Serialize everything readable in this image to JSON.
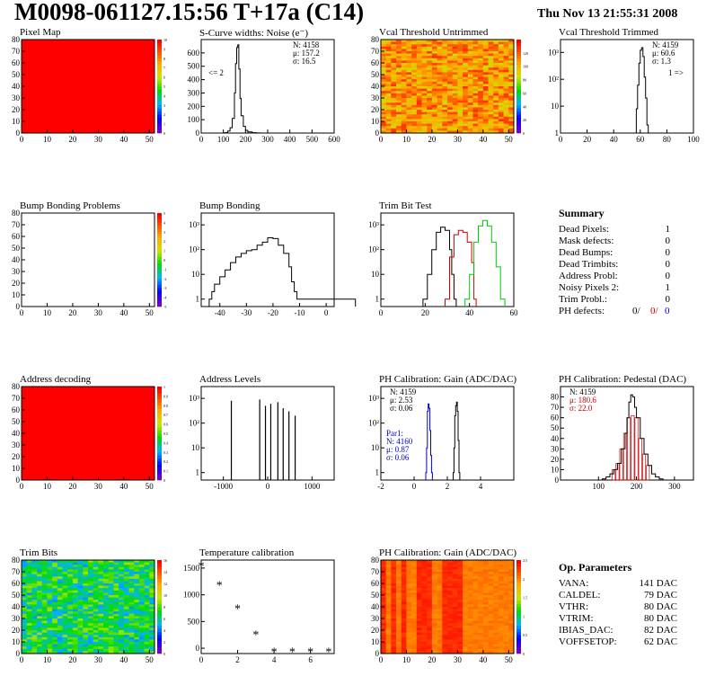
{
  "title": "M0098-061127.15:56 T+17a (C14)",
  "date": "Thu Nov 13 21:55:31 2008",
  "panels": [
    {
      "key": "pixel_map",
      "title": "Pixel Map",
      "type": "heatmap",
      "xlim": [
        0,
        52
      ],
      "ylim": [
        0,
        80
      ],
      "xticks": [
        0,
        10,
        20,
        30,
        40,
        50
      ],
      "yticks": [
        0,
        10,
        20,
        30,
        40,
        50,
        60,
        70,
        80
      ],
      "base": "#ff0000",
      "zlim": [
        0,
        10
      ],
      "zticks": [
        0,
        1,
        2,
        3,
        4,
        5,
        6,
        7,
        8,
        9,
        10
      ]
    },
    {
      "key": "noise",
      "title": "S-Curve widths: Noise (e⁻)",
      "type": "histogram",
      "xlim": [
        0,
        600
      ],
      "ylim": [
        0,
        700
      ],
      "xticks": [
        0,
        100,
        200,
        300,
        400,
        500,
        600
      ],
      "yticks": [
        0,
        100,
        200,
        300,
        400,
        500,
        600
      ],
      "stats": [
        "N: 4158",
        "μ: 157.2",
        "σ: 16.5"
      ],
      "note": "<= 2",
      "series": [
        {
          "color": "#000000",
          "points": [
            [
              100,
              2
            ],
            [
              110,
              4
            ],
            [
              120,
              15
            ],
            [
              130,
              40
            ],
            [
              140,
              110
            ],
            [
              150,
              300
            ],
            [
              155,
              520
            ],
            [
              160,
              640
            ],
            [
              165,
              660
            ],
            [
              170,
              480
            ],
            [
              175,
              260
            ],
            [
              180,
              130
            ],
            [
              190,
              50
            ],
            [
              200,
              20
            ],
            [
              210,
              8
            ],
            [
              230,
              3
            ],
            [
              250,
              1
            ]
          ]
        }
      ]
    },
    {
      "key": "vcal_untrimmed",
      "title": "Vcal Threshold Untrimmed",
      "type": "heatmap",
      "xlim": [
        0,
        52
      ],
      "ylim": [
        0,
        80
      ],
      "xticks": [
        0,
        10,
        20,
        30,
        40,
        50
      ],
      "yticks": [
        0,
        10,
        20,
        30,
        40,
        50,
        60,
        70,
        80
      ],
      "base": "#f07a1c",
      "noise": true,
      "zlim": [
        0,
        140
      ],
      "zticks": [
        0,
        20,
        40,
        60,
        80,
        100,
        120
      ]
    },
    {
      "key": "vcal_trimmed",
      "title": "Vcal Threshold Trimmed",
      "type": "histogram",
      "xlim": [
        0,
        100
      ],
      "ylim": [
        1,
        3000
      ],
      "log": true,
      "xticks": [
        0,
        20,
        40,
        60,
        80,
        100
      ],
      "yticks": [
        1,
        10,
        100,
        1000
      ],
      "ytick_labels": [
        "1",
        "10",
        "10²",
        "10³"
      ],
      "stats": [
        "N: 4159",
        "μ: 60.6",
        "σ:  1.3"
      ],
      "note": "1 =>",
      "series": [
        {
          "color": "#000000",
          "points": [
            [
              56,
              1
            ],
            [
              57,
              8
            ],
            [
              58,
              60
            ],
            [
              59,
              400
            ],
            [
              60,
              1200
            ],
            [
              61,
              1500
            ],
            [
              62,
              700
            ],
            [
              63,
              120
            ],
            [
              64,
              20
            ],
            [
              65,
              2
            ]
          ]
        }
      ]
    },
    {
      "key": "bump_problems",
      "title": "Bump Bonding Problems",
      "type": "heatmap",
      "xlim": [
        0,
        52
      ],
      "ylim": [
        0,
        80
      ],
      "xticks": [
        0,
        10,
        20,
        30,
        40,
        50
      ],
      "yticks": [
        0,
        10,
        20,
        30,
        40,
        50,
        60,
        70,
        80
      ],
      "base": "#ffffff",
      "zlim": [
        -5,
        5
      ],
      "zticks": [
        -5,
        -4,
        -3,
        -2,
        -1,
        0,
        1,
        2,
        3,
        4,
        5
      ]
    },
    {
      "key": "bump_bonding",
      "title": "Bump Bonding",
      "type": "histogram",
      "xlim": [
        -47,
        3
      ],
      "ylim": [
        0.5,
        3000
      ],
      "log": true,
      "xticks": [
        -40,
        -30,
        -20,
        -10,
        0
      ],
      "yticks": [
        1,
        10,
        100,
        1000
      ],
      "ytick_labels": [
        "1",
        "10",
        "10²",
        "10³"
      ],
      "series": [
        {
          "color": "#000000",
          "points": [
            [
              -44,
              1
            ],
            [
              -43,
              2
            ],
            [
              -42,
              4
            ],
            [
              -40,
              8
            ],
            [
              -38,
              15
            ],
            [
              -36,
              30
            ],
            [
              -34,
              50
            ],
            [
              -32,
              70
            ],
            [
              -30,
              90
            ],
            [
              -28,
              100
            ],
            [
              -26,
              150
            ],
            [
              -24,
              200
            ],
            [
              -22,
              300
            ],
            [
              -20,
              280
            ],
            [
              -18,
              150
            ],
            [
              -16,
              70
            ],
            [
              -14,
              20
            ],
            [
              -13,
              5
            ],
            [
              -12,
              2
            ],
            [
              -11,
              1
            ],
            [
              0,
              1
            ]
          ]
        }
      ]
    },
    {
      "key": "trim_bits",
      "title": "Trim Bit Test",
      "type": "histogram",
      "xlim": [
        0,
        60
      ],
      "ylim": [
        0.5,
        3000
      ],
      "log": true,
      "xticks": [
        0,
        20,
        40,
        60
      ],
      "yticks": [
        1,
        10,
        100,
        1000
      ],
      "ytick_labels": [
        "1",
        "10",
        "10²",
        "10³"
      ],
      "series": [
        {
          "color": "#000000",
          "points": [
            [
              19,
              1
            ],
            [
              21,
              10
            ],
            [
              23,
              100
            ],
            [
              25,
              500
            ],
            [
              27,
              800
            ],
            [
              29,
              600
            ],
            [
              31,
              100
            ],
            [
              32,
              10
            ],
            [
              33,
              1
            ]
          ]
        },
        {
          "color": "#cc0000",
          "points": [
            [
              29,
              1
            ],
            [
              31,
              50
            ],
            [
              33,
              400
            ],
            [
              35,
              600
            ],
            [
              37,
              500
            ],
            [
              39,
              200
            ],
            [
              41,
              30
            ],
            [
              42,
              1
            ]
          ]
        },
        {
          "color": "#00cc00",
          "points": [
            [
              38,
              1
            ],
            [
              40,
              10
            ],
            [
              42,
              200
            ],
            [
              44,
              900
            ],
            [
              46,
              1500
            ],
            [
              48,
              900
            ],
            [
              50,
              200
            ],
            [
              52,
              20
            ],
            [
              54,
              1
            ]
          ]
        }
      ]
    },
    {
      "key": "address_decoding",
      "title": "Address decoding",
      "type": "heatmap",
      "xlim": [
        0,
        52
      ],
      "ylim": [
        0,
        80
      ],
      "xticks": [
        0,
        10,
        20,
        30,
        40,
        50
      ],
      "yticks": [
        0,
        10,
        20,
        30,
        40,
        50,
        60,
        70,
        80
      ],
      "base": "#ff0000",
      "zlim": [
        0,
        1
      ],
      "zticks": [
        0,
        0.1,
        0.2,
        0.3,
        0.4,
        0.5,
        0.6,
        0.7,
        0.8,
        0.9,
        1
      ]
    },
    {
      "key": "address_levels",
      "title": "Address Levels",
      "type": "spikes",
      "xlim": [
        -1500,
        1500
      ],
      "ylim": [
        0.5,
        3000
      ],
      "log": true,
      "xticks": [
        -1000,
        0,
        1000
      ],
      "yticks": [
        1,
        10,
        100,
        1000
      ],
      "ytick_labels": [
        "1",
        "10",
        "10²",
        "10³"
      ],
      "series": [
        {
          "color": "#000000",
          "spikes": [
            [
              -820,
              800
            ],
            [
              -180,
              900
            ],
            [
              -50,
              500
            ],
            [
              70,
              600
            ],
            [
              230,
              700
            ],
            [
              350,
              400
            ],
            [
              480,
              300
            ],
            [
              620,
              200
            ]
          ]
        }
      ]
    },
    {
      "key": "ph_gain",
      "title": "PH Calibration: Gain (ADC/DAC)",
      "type": "histogram",
      "xlim": [
        -2,
        6
      ],
      "ylim": [
        0.5,
        3000
      ],
      "log": true,
      "xticks": [
        -2,
        0,
        2,
        4
      ],
      "yticks": [
        1,
        10,
        100,
        1000
      ],
      "ytick_labels": [
        "1",
        "10",
        "10²",
        "10³"
      ],
      "stats": [
        "N: 4159",
        "μ: 2.53",
        "σ: 0.06"
      ],
      "stats2": [
        "Par1:",
        "N: 4160",
        "μ: 0.87",
        "σ: 0.06"
      ],
      "stats2_color": "#0000cc",
      "series": [
        {
          "color": "#0000cc",
          "points": [
            [
              0.7,
              1
            ],
            [
              0.75,
              10
            ],
            [
              0.8,
              300
            ],
            [
              0.85,
              600
            ],
            [
              0.9,
              400
            ],
            [
              0.95,
              50
            ],
            [
              1.0,
              5
            ],
            [
              1.05,
              1
            ]
          ]
        },
        {
          "color": "#000000",
          "points": [
            [
              2.35,
              1
            ],
            [
              2.4,
              10
            ],
            [
              2.45,
              200
            ],
            [
              2.5,
              500
            ],
            [
              2.55,
              700
            ],
            [
              2.6,
              300
            ],
            [
              2.65,
              20
            ],
            [
              2.7,
              1
            ]
          ]
        }
      ]
    },
    {
      "key": "ph_pedestal",
      "title": "PH Calibration: Pedestal (DAC)",
      "type": "histogram",
      "xlim": [
        0,
        350
      ],
      "ylim": [
        0,
        90
      ],
      "xticks": [
        100,
        200,
        300
      ],
      "yticks": [
        0,
        10,
        20,
        30,
        40,
        50,
        60,
        70,
        80
      ],
      "stats": [
        "N: 4159",
        "μ: 180.6",
        "σ: 22.0"
      ],
      "stats_colors": [
        "#000000",
        "#cc0000",
        "#cc0000"
      ],
      "series": [
        {
          "color": "#000000",
          "points": [
            [
              110,
              1
            ],
            [
              120,
              3
            ],
            [
              130,
              6
            ],
            [
              140,
              10
            ],
            [
              150,
              16
            ],
            [
              160,
              30
            ],
            [
              170,
              45
            ],
            [
              175,
              60
            ],
            [
              180,
              75
            ],
            [
              185,
              82
            ],
            [
              190,
              80
            ],
            [
              195,
              70
            ],
            [
              200,
              60
            ],
            [
              210,
              40
            ],
            [
              220,
              25
            ],
            [
              230,
              14
            ],
            [
              240,
              6
            ],
            [
              250,
              3
            ],
            [
              260,
              1
            ]
          ]
        }
      ],
      "bars": {
        "color": "#cc0000",
        "points": [
          [
            140,
            10
          ],
          [
            150,
            16
          ],
          [
            160,
            30
          ],
          [
            170,
            45
          ],
          [
            180,
            60
          ],
          [
            190,
            62
          ],
          [
            200,
            60
          ],
          [
            210,
            40
          ],
          [
            220,
            25
          ],
          [
            230,
            14
          ]
        ]
      }
    },
    {
      "key": "trim_map",
      "title": "Trim Bits",
      "type": "heatmap",
      "xlim": [
        0,
        52
      ],
      "ylim": [
        0,
        80
      ],
      "xticks": [
        0,
        10,
        20,
        30,
        40,
        50
      ],
      "yticks": [
        0,
        10,
        20,
        30,
        40,
        50,
        60,
        70,
        80
      ],
      "base": "#9bd24a",
      "noise": true,
      "zlim": [
        0,
        16
      ],
      "zticks": [
        0,
        2,
        4,
        6,
        8,
        10,
        12,
        14,
        16
      ]
    },
    {
      "key": "temperature",
      "title": "Temperature calibration",
      "type": "scatter",
      "xlim": [
        0,
        7.3
      ],
      "ylim": [
        -100,
        1650
      ],
      "xticks": [
        0,
        2,
        4,
        6
      ],
      "yticks": [
        0,
        500,
        1000,
        1500
      ],
      "points": [
        [
          0,
          1550
        ],
        [
          1,
          1190
        ],
        [
          2,
          750
        ],
        [
          3,
          260
        ],
        [
          4,
          -60
        ],
        [
          5,
          -60
        ],
        [
          6,
          -60
        ],
        [
          7,
          -60
        ]
      ]
    },
    {
      "key": "ph_gain_map",
      "title": "PH Calibration: Gain (ADC/DAC)",
      "type": "heatmap",
      "xlim": [
        0,
        52
      ],
      "ylim": [
        0,
        80
      ],
      "xticks": [
        0,
        10,
        20,
        30,
        40,
        50
      ],
      "yticks": [
        0,
        10,
        20,
        30,
        40,
        50,
        60,
        70,
        80
      ],
      "base": "#f04a1a",
      "columns": true,
      "zlim": [
        0,
        2.5
      ],
      "zticks": [
        0,
        0.5,
        1,
        1.5,
        2,
        2.5
      ]
    }
  ],
  "summary": {
    "heading": "Summary",
    "rows": [
      {
        "label": "Dead Pixels:",
        "value": "1"
      },
      {
        "label": "Mask defects:",
        "value": "0"
      },
      {
        "label": "Dead Bumps:",
        "value": "0"
      },
      {
        "label": "Dead Trimbits:",
        "value": "0"
      },
      {
        "label": "Address Probl:",
        "value": "0"
      },
      {
        "label": "Noisy Pixels 2:",
        "value": "1"
      },
      {
        "label": "Trim Probl.:",
        "value": "0"
      }
    ],
    "ph_label": "PH defects:",
    "ph_values": [
      {
        "value": "0/",
        "color": "#000000"
      },
      {
        "value": "0/",
        "color": "#cc0000"
      },
      {
        "value": "0",
        "color": "#0000cc"
      }
    ]
  },
  "op_params": {
    "heading": "Op. Parameters",
    "rows": [
      {
        "label": "VANA:",
        "value": "141 DAC"
      },
      {
        "label": "CALDEL:",
        "value": "79 DAC"
      },
      {
        "label": "VTHR:",
        "value": "80 DAC"
      },
      {
        "label": "VTRIM:",
        "value": "80 DAC"
      },
      {
        "label": "IBIAS_DAC:",
        "value": "82 DAC"
      },
      {
        "label": "VOFFSETOP:",
        "value": "62 DAC"
      }
    ]
  }
}
